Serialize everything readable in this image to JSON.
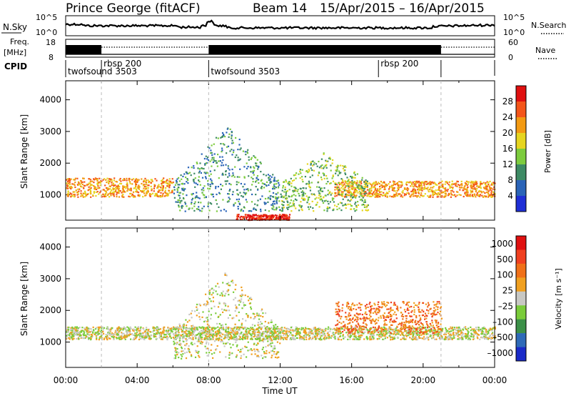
{
  "header": {
    "station": "Prince George (fitACF)",
    "beam": "Beam 14",
    "dates": "15/Apr/2015 – 16/Apr/2015"
  },
  "panels": {
    "nsky": {
      "label": "N.Sky",
      "tick_top": "10^5",
      "tick_bottom": "10^0",
      "right_tick_top": "10^5",
      "right_tick_bottom": "10^0",
      "right_label": "N.Search"
    },
    "freq": {
      "label_line1": "Freq.",
      "label_line2": "[MHz]",
      "tick_top": "18",
      "tick_bottom": "8",
      "right_tick_top": "60",
      "right_tick_bottom": "0",
      "right_label": "Nave"
    },
    "cpid": {
      "label": "CPID",
      "segments": [
        {
          "start_hour": 0,
          "label": "twofsound 3503",
          "row": 2
        },
        {
          "start_hour": 2.0,
          "label": "rbsp 200",
          "row": 1
        },
        {
          "start_hour": 8.0,
          "label": "twofsound 3503",
          "row": 2
        },
        {
          "start_hour": 17.5,
          "label": "rbsp 200",
          "row": 1
        },
        {
          "start_hour": 21.0,
          "label": "",
          "row": 0
        }
      ]
    }
  },
  "chart_data": [
    {
      "type": "heatmap",
      "name": "power",
      "ylabel": "Slant Range [km]",
      "yticks": [
        1000,
        2000,
        3000,
        4000
      ],
      "ylim": [
        200,
        4600
      ],
      "xlim": [
        0,
        24
      ],
      "colorbar_label": "Power [dB]",
      "colorbar_ticks": [
        "4",
        "8",
        "12",
        "16",
        "20",
        "24",
        "28"
      ],
      "colors": [
        "#1f2fd6",
        "#2a64b8",
        "#3d8a64",
        "#7dcc3e",
        "#e6d520",
        "#f39a12",
        "#f4551a",
        "#e01010"
      ],
      "features": [
        {
          "x_start": 0,
          "x_end": 6,
          "range_center": 1250,
          "range_width": 300,
          "level": 5
        },
        {
          "x_start": 15,
          "x_end": 24,
          "range_center": 1200,
          "range_width": 250,
          "level": 5
        },
        {
          "x_start": 6,
          "x_end": 12,
          "range_peak": 3200,
          "level": 2
        },
        {
          "x_start": 12,
          "x_end": 17,
          "range_peak": 2400,
          "level": 3
        },
        {
          "x_start": 9.5,
          "x_end": 12.5,
          "range_center": 280,
          "range_width": 120,
          "level": 7
        }
      ]
    },
    {
      "type": "heatmap",
      "name": "velocity",
      "ylabel": "Slant Range [km]",
      "yticks": [
        1000,
        2000,
        3000,
        4000
      ],
      "ylim": [
        200,
        4600
      ],
      "xlim": [
        0,
        24
      ],
      "xticks": [
        "00:00",
        "04:00",
        "08:00",
        "12:00",
        "16:00",
        "20:00",
        "00:00"
      ],
      "xlabel": "Time UT",
      "colorbar_label": "Velocity [m s⁻¹]",
      "colorbar_ticks": [
        "1000",
        "500",
        "100",
        "25",
        "–25",
        "–100",
        "–500",
        "–1000"
      ],
      "colors": [
        "#1a2ac8",
        "#2e6ab8",
        "#3c9048",
        "#7acc3a",
        "#c8c8c4",
        "#f0a020",
        "#f07018",
        "#f04020",
        "#e01010"
      ],
      "features": [
        {
          "x_start": 0,
          "x_end": 24,
          "range_center": 1300,
          "range_width": 200,
          "level": 4
        },
        {
          "x_start": 15,
          "x_end": 21,
          "range_center": 1800,
          "range_width": 500,
          "level": 6
        },
        {
          "x_start": 6,
          "x_end": 12,
          "range_peak": 3300,
          "level": 4
        }
      ]
    }
  ]
}
